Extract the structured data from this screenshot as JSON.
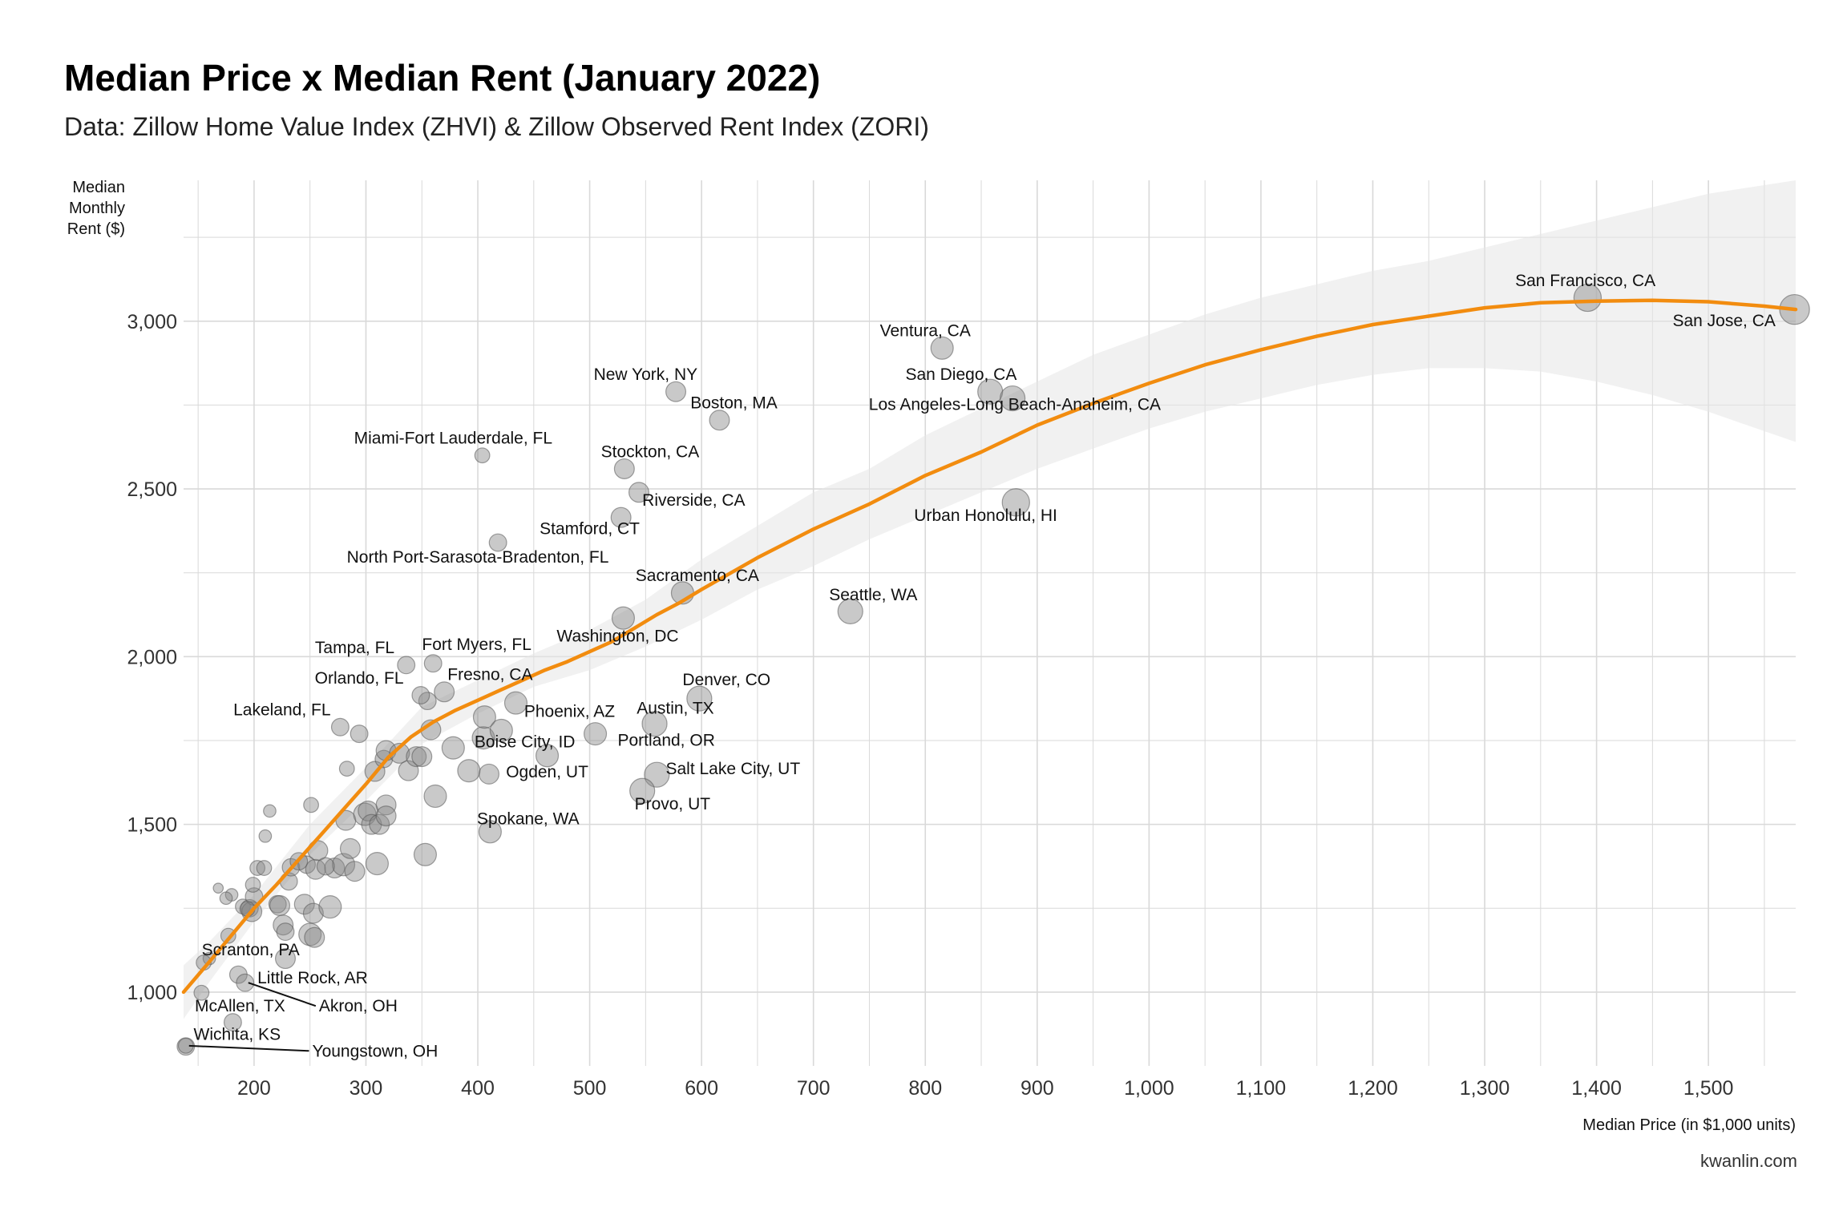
{
  "title": "Median Price x Median Rent (January 2022)",
  "subtitle": "Data: Zillow Home Value Index (ZHVI) & Zillow Observed Rent Index (ZORI)",
  "caption": "kwanlin.com",
  "chart_data": {
    "type": "scatter",
    "title": "Median Price x Median Rent (January 2022)",
    "xlabel": "Median Price (in $1,000 units)",
    "ylabel_lines": [
      "Median",
      "Monthly",
      "Rent ($)"
    ],
    "xlim": [
      137,
      1578
    ],
    "ylim": [
      780,
      3420
    ],
    "x_ticks": [
      200,
      300,
      400,
      500,
      600,
      700,
      800,
      900,
      1000,
      1100,
      1200,
      1300,
      1400,
      1500
    ],
    "x_tick_labels": [
      "200",
      "300",
      "400",
      "500",
      "600",
      "700",
      "800",
      "900",
      "1,000",
      "1,100",
      "1,200",
      "1,300",
      "1,400",
      "1,500"
    ],
    "y_ticks": [
      1000,
      1500,
      2000,
      2500,
      3000
    ],
    "y_tick_labels": [
      "1,000",
      "1,500",
      "2,000",
      "2,500",
      "3,000"
    ],
    "grid": true,
    "colors": {
      "points": "#888888",
      "trend": "#f28c0f",
      "band": "#e6e6e6",
      "grid": "#d9d9d9"
    },
    "labeled_points": [
      {
        "label": "San Francisco, CA",
        "x": 1392,
        "y": 3070,
        "size": 11,
        "lx": 1390,
        "ly": 3105,
        "anchor": "middle"
      },
      {
        "label": "San Jose, CA",
        "x": 1577,
        "y": 3035,
        "size": 12,
        "lx": 1560,
        "ly": 2985,
        "anchor": "end"
      },
      {
        "label": "Ventura, CA",
        "x": 815,
        "y": 2920,
        "size": 9,
        "lx": 800,
        "ly": 2955,
        "anchor": "middle"
      },
      {
        "label": "San Diego, CA",
        "x": 858,
        "y": 2790,
        "size": 10,
        "lx": 832,
        "ly": 2825,
        "anchor": "middle"
      },
      {
        "label": "Los Angeles-Long Beach-Anaheim, CA",
        "x": 878,
        "y": 2770,
        "size": 10,
        "lx": 880,
        "ly": 2735,
        "anchor": "middle"
      },
      {
        "label": "New York, NY",
        "x": 577,
        "y": 2790,
        "size": 8,
        "lx": 550,
        "ly": 2825,
        "anchor": "middle"
      },
      {
        "label": "Boston, MA",
        "x": 616,
        "y": 2705,
        "size": 8,
        "lx": 590,
        "ly": 2740,
        "anchor": "start"
      },
      {
        "label": "Miami-Fort Lauderdale, FL",
        "x": 404,
        "y": 2600,
        "size": 6,
        "lx": 378,
        "ly": 2635,
        "anchor": "middle"
      },
      {
        "label": "Stockton, CA",
        "x": 531,
        "y": 2560,
        "size": 8,
        "lx": 554,
        "ly": 2595,
        "anchor": "middle"
      },
      {
        "label": "Riverside, CA",
        "x": 544,
        "y": 2490,
        "size": 8,
        "lx": 547,
        "ly": 2450,
        "anchor": "start"
      },
      {
        "label": "Stamford, CT",
        "x": 528,
        "y": 2415,
        "size": 8,
        "lx": 500,
        "ly": 2365,
        "anchor": "middle"
      },
      {
        "label": "North Port-Sarasota-Bradenton, FL",
        "x": 418,
        "y": 2340,
        "size": 7,
        "lx": 400,
        "ly": 2280,
        "anchor": "middle"
      },
      {
        "label": "Sacramento, CA",
        "x": 583,
        "y": 2190,
        "size": 9,
        "lx": 541,
        "ly": 2225,
        "anchor": "start"
      },
      {
        "label": "Seattle, WA",
        "x": 733,
        "y": 2135,
        "size": 10,
        "lx": 714,
        "ly": 2168,
        "anchor": "start"
      },
      {
        "label": "Urban Honolulu, HI",
        "x": 881,
        "y": 2460,
        "size": 11,
        "lx": 790,
        "ly": 2405,
        "anchor": "start"
      },
      {
        "label": "Washington, DC",
        "x": 530,
        "y": 2115,
        "size": 9,
        "lx": 525,
        "ly": 2045,
        "anchor": "middle"
      },
      {
        "label": "Tampa, FL",
        "x": 336,
        "y": 1975,
        "size": 7,
        "lx": 290,
        "ly": 2010,
        "anchor": "middle"
      },
      {
        "label": "Fort Myers, FL",
        "x": 360,
        "y": 1980,
        "size": 7,
        "lx": 399,
        "ly": 2020,
        "anchor": "middle"
      },
      {
        "label": "Orlando, FL",
        "x": 349,
        "y": 1885,
        "size": 7,
        "lx": 294,
        "ly": 1920,
        "anchor": "middle"
      },
      {
        "label": "Fresno, CA",
        "x": 370,
        "y": 1895,
        "size": 8,
        "lx": 411,
        "ly": 1930,
        "anchor": "middle"
      },
      {
        "label": "Lakeland, FL",
        "x": 277,
        "y": 1790,
        "size": 7,
        "lx": 225,
        "ly": 1825,
        "anchor": "middle"
      },
      {
        "label": "Denver, CO",
        "x": 598,
        "y": 1875,
        "size": 10,
        "lx": 583,
        "ly": 1915,
        "anchor": "start"
      },
      {
        "label": "Phoenix, AZ",
        "x": 434,
        "y": 1862,
        "size": 9,
        "lx": 482,
        "ly": 1820,
        "anchor": "middle"
      },
      {
        "label": "Austin, TX",
        "x": 558,
        "y": 1800,
        "size": 10,
        "lx": 542,
        "ly": 1830,
        "anchor": "start"
      },
      {
        "label": "Portland, OR",
        "x": 505,
        "y": 1770,
        "size": 9,
        "lx": 525,
        "ly": 1735,
        "anchor": "start"
      },
      {
        "label": "Boise City, ID",
        "x": 462,
        "y": 1705,
        "size": 9,
        "lx": 442,
        "ly": 1730,
        "anchor": "middle"
      },
      {
        "label": "Ogden, UT",
        "x": 410,
        "y": 1650,
        "size": 8,
        "lx": 462,
        "ly": 1640,
        "anchor": "middle"
      },
      {
        "label": "Salt Lake City, UT",
        "x": 560,
        "y": 1648,
        "size": 10,
        "lx": 568,
        "ly": 1650,
        "anchor": "start"
      },
      {
        "label": "Provo, UT",
        "x": 547,
        "y": 1600,
        "size": 10,
        "lx": 574,
        "ly": 1545,
        "anchor": "middle"
      },
      {
        "label": "Spokane, WA",
        "x": 411,
        "y": 1478,
        "size": 9,
        "lx": 445,
        "ly": 1500,
        "anchor": "middle"
      },
      {
        "label": "Scranton, PA",
        "x": 155,
        "y": 1088,
        "size": 6,
        "lx": 197,
        "ly": 1110,
        "anchor": "middle"
      },
      {
        "label": "Little Rock, AR",
        "x": 186,
        "y": 1052,
        "size": 7,
        "lx": 203,
        "ly": 1026,
        "anchor": "start"
      },
      {
        "label": "McAllen, TX",
        "x": 153,
        "y": 998,
        "size": 6,
        "lx": 147,
        "ly": 943,
        "anchor": "start"
      },
      {
        "label": "Akron, OH",
        "x": 192,
        "y": 1028,
        "size": 7,
        "lx": 258,
        "ly": 942,
        "anchor": "start",
        "leader": true
      },
      {
        "label": "Wichita, KS",
        "x": 139,
        "y": 838,
        "size": 7,
        "lx": 146,
        "ly": 858,
        "anchor": "start"
      },
      {
        "label": "Youngstown, OH",
        "x": 139,
        "y": 840,
        "size": 6,
        "lx": 252,
        "ly": 808,
        "anchor": "start",
        "leader": true
      }
    ],
    "other_points": [
      [
        181,
        910,
        7
      ],
      [
        177,
        1168,
        6
      ],
      [
        190,
        1255,
        6
      ],
      [
        196,
        1250,
        7
      ],
      [
        198,
        1240,
        8
      ],
      [
        200,
        1285,
        7
      ],
      [
        199,
        1320,
        6
      ],
      [
        203,
        1370,
        6
      ],
      [
        209,
        1370,
        6
      ],
      [
        214,
        1540,
        5
      ],
      [
        210,
        1465,
        5
      ],
      [
        221,
        1262,
        7
      ],
      [
        223,
        1258,
        8
      ],
      [
        226,
        1200,
        8
      ],
      [
        228,
        1180,
        7
      ],
      [
        231,
        1330,
        7
      ],
      [
        233,
        1372,
        7
      ],
      [
        245,
        1262,
        8
      ],
      [
        247,
        1380,
        7
      ],
      [
        250,
        1172,
        9
      ],
      [
        253,
        1235,
        8
      ],
      [
        254,
        1163,
        8
      ],
      [
        255,
        1366,
        8
      ],
      [
        257,
        1422,
        8
      ],
      [
        251,
        1558,
        6
      ],
      [
        268,
        1254,
        9
      ],
      [
        272,
        1370,
        8
      ],
      [
        280,
        1380,
        9
      ],
      [
        282,
        1512,
        8
      ],
      [
        286,
        1428,
        8
      ],
      [
        290,
        1360,
        8
      ],
      [
        283,
        1666,
        6
      ],
      [
        294,
        1770,
        7
      ],
      [
        299,
        1530,
        9
      ],
      [
        302,
        1540,
        8
      ],
      [
        305,
        1500,
        8
      ],
      [
        308,
        1658,
        8
      ],
      [
        310,
        1383,
        9
      ],
      [
        312,
        1500,
        8
      ],
      [
        316,
        1695,
        7
      ],
      [
        318,
        1720,
        8
      ],
      [
        318,
        1558,
        8
      ],
      [
        318,
        1525,
        8
      ],
      [
        330,
        1712,
        8
      ],
      [
        338,
        1660,
        8
      ],
      [
        345,
        1702,
        8
      ],
      [
        350,
        1702,
        8
      ],
      [
        353,
        1410,
        9
      ],
      [
        355,
        1868,
        7
      ],
      [
        358,
        1782,
        8
      ],
      [
        362,
        1584,
        9
      ],
      [
        378,
        1728,
        9
      ],
      [
        392,
        1660,
        9
      ],
      [
        405,
        1758,
        9
      ],
      [
        406,
        1820,
        9
      ],
      [
        421,
        1780,
        9
      ],
      [
        228,
        1100,
        8
      ],
      [
        240,
        1390,
        7
      ],
      [
        264,
        1375,
        7
      ],
      [
        194,
        1248,
        6
      ],
      [
        180,
        1290,
        5
      ],
      [
        175,
        1280,
        5
      ],
      [
        168,
        1310,
        4
      ],
      [
        160,
        1100,
        5
      ]
    ],
    "trend": [
      [
        137,
        1000
      ],
      [
        160,
        1090
      ],
      [
        180,
        1170
      ],
      [
        200,
        1250
      ],
      [
        220,
        1320
      ],
      [
        240,
        1395
      ],
      [
        260,
        1470
      ],
      [
        280,
        1545
      ],
      [
        300,
        1620
      ],
      [
        320,
        1700
      ],
      [
        340,
        1760
      ],
      [
        360,
        1805
      ],
      [
        380,
        1840
      ],
      [
        400,
        1870
      ],
      [
        420,
        1900
      ],
      [
        440,
        1930
      ],
      [
        460,
        1960
      ],
      [
        480,
        1985
      ],
      [
        500,
        2015
      ],
      [
        520,
        2045
      ],
      [
        540,
        2085
      ],
      [
        560,
        2125
      ],
      [
        580,
        2160
      ],
      [
        600,
        2200
      ],
      [
        650,
        2295
      ],
      [
        700,
        2380
      ],
      [
        750,
        2455
      ],
      [
        800,
        2540
      ],
      [
        850,
        2610
      ],
      [
        900,
        2690
      ],
      [
        950,
        2755
      ],
      [
        1000,
        2815
      ],
      [
        1050,
        2870
      ],
      [
        1100,
        2915
      ],
      [
        1150,
        2955
      ],
      [
        1200,
        2990
      ],
      [
        1250,
        3015
      ],
      [
        1300,
        3040
      ],
      [
        1350,
        3055
      ],
      [
        1400,
        3060
      ],
      [
        1450,
        3062
      ],
      [
        1500,
        3058
      ],
      [
        1550,
        3045
      ],
      [
        1578,
        3035
      ]
    ],
    "band": [
      [
        137,
        920,
        1080
      ],
      [
        160,
        1030,
        1150
      ],
      [
        200,
        1210,
        1290
      ],
      [
        250,
        1410,
        1500
      ],
      [
        300,
        1570,
        1670
      ],
      [
        350,
        1740,
        1850
      ],
      [
        400,
        1830,
        1930
      ],
      [
        450,
        1910,
        2010
      ],
      [
        500,
        1960,
        2080
      ],
      [
        550,
        2030,
        2170
      ],
      [
        600,
        2110,
        2290
      ],
      [
        650,
        2200,
        2390
      ],
      [
        700,
        2270,
        2490
      ],
      [
        750,
        2350,
        2560
      ],
      [
        800,
        2420,
        2660
      ],
      [
        850,
        2490,
        2740
      ],
      [
        900,
        2560,
        2820
      ],
      [
        950,
        2620,
        2900
      ],
      [
        1000,
        2680,
        2960
      ],
      [
        1050,
        2730,
        3020
      ],
      [
        1100,
        2770,
        3070
      ],
      [
        1150,
        2810,
        3110
      ],
      [
        1200,
        2840,
        3150
      ],
      [
        1250,
        2860,
        3180
      ],
      [
        1300,
        2860,
        3220
      ],
      [
        1350,
        2850,
        3260
      ],
      [
        1400,
        2820,
        3300
      ],
      [
        1450,
        2780,
        3340
      ],
      [
        1500,
        2730,
        3380
      ],
      [
        1578,
        2640,
        3420
      ]
    ]
  }
}
